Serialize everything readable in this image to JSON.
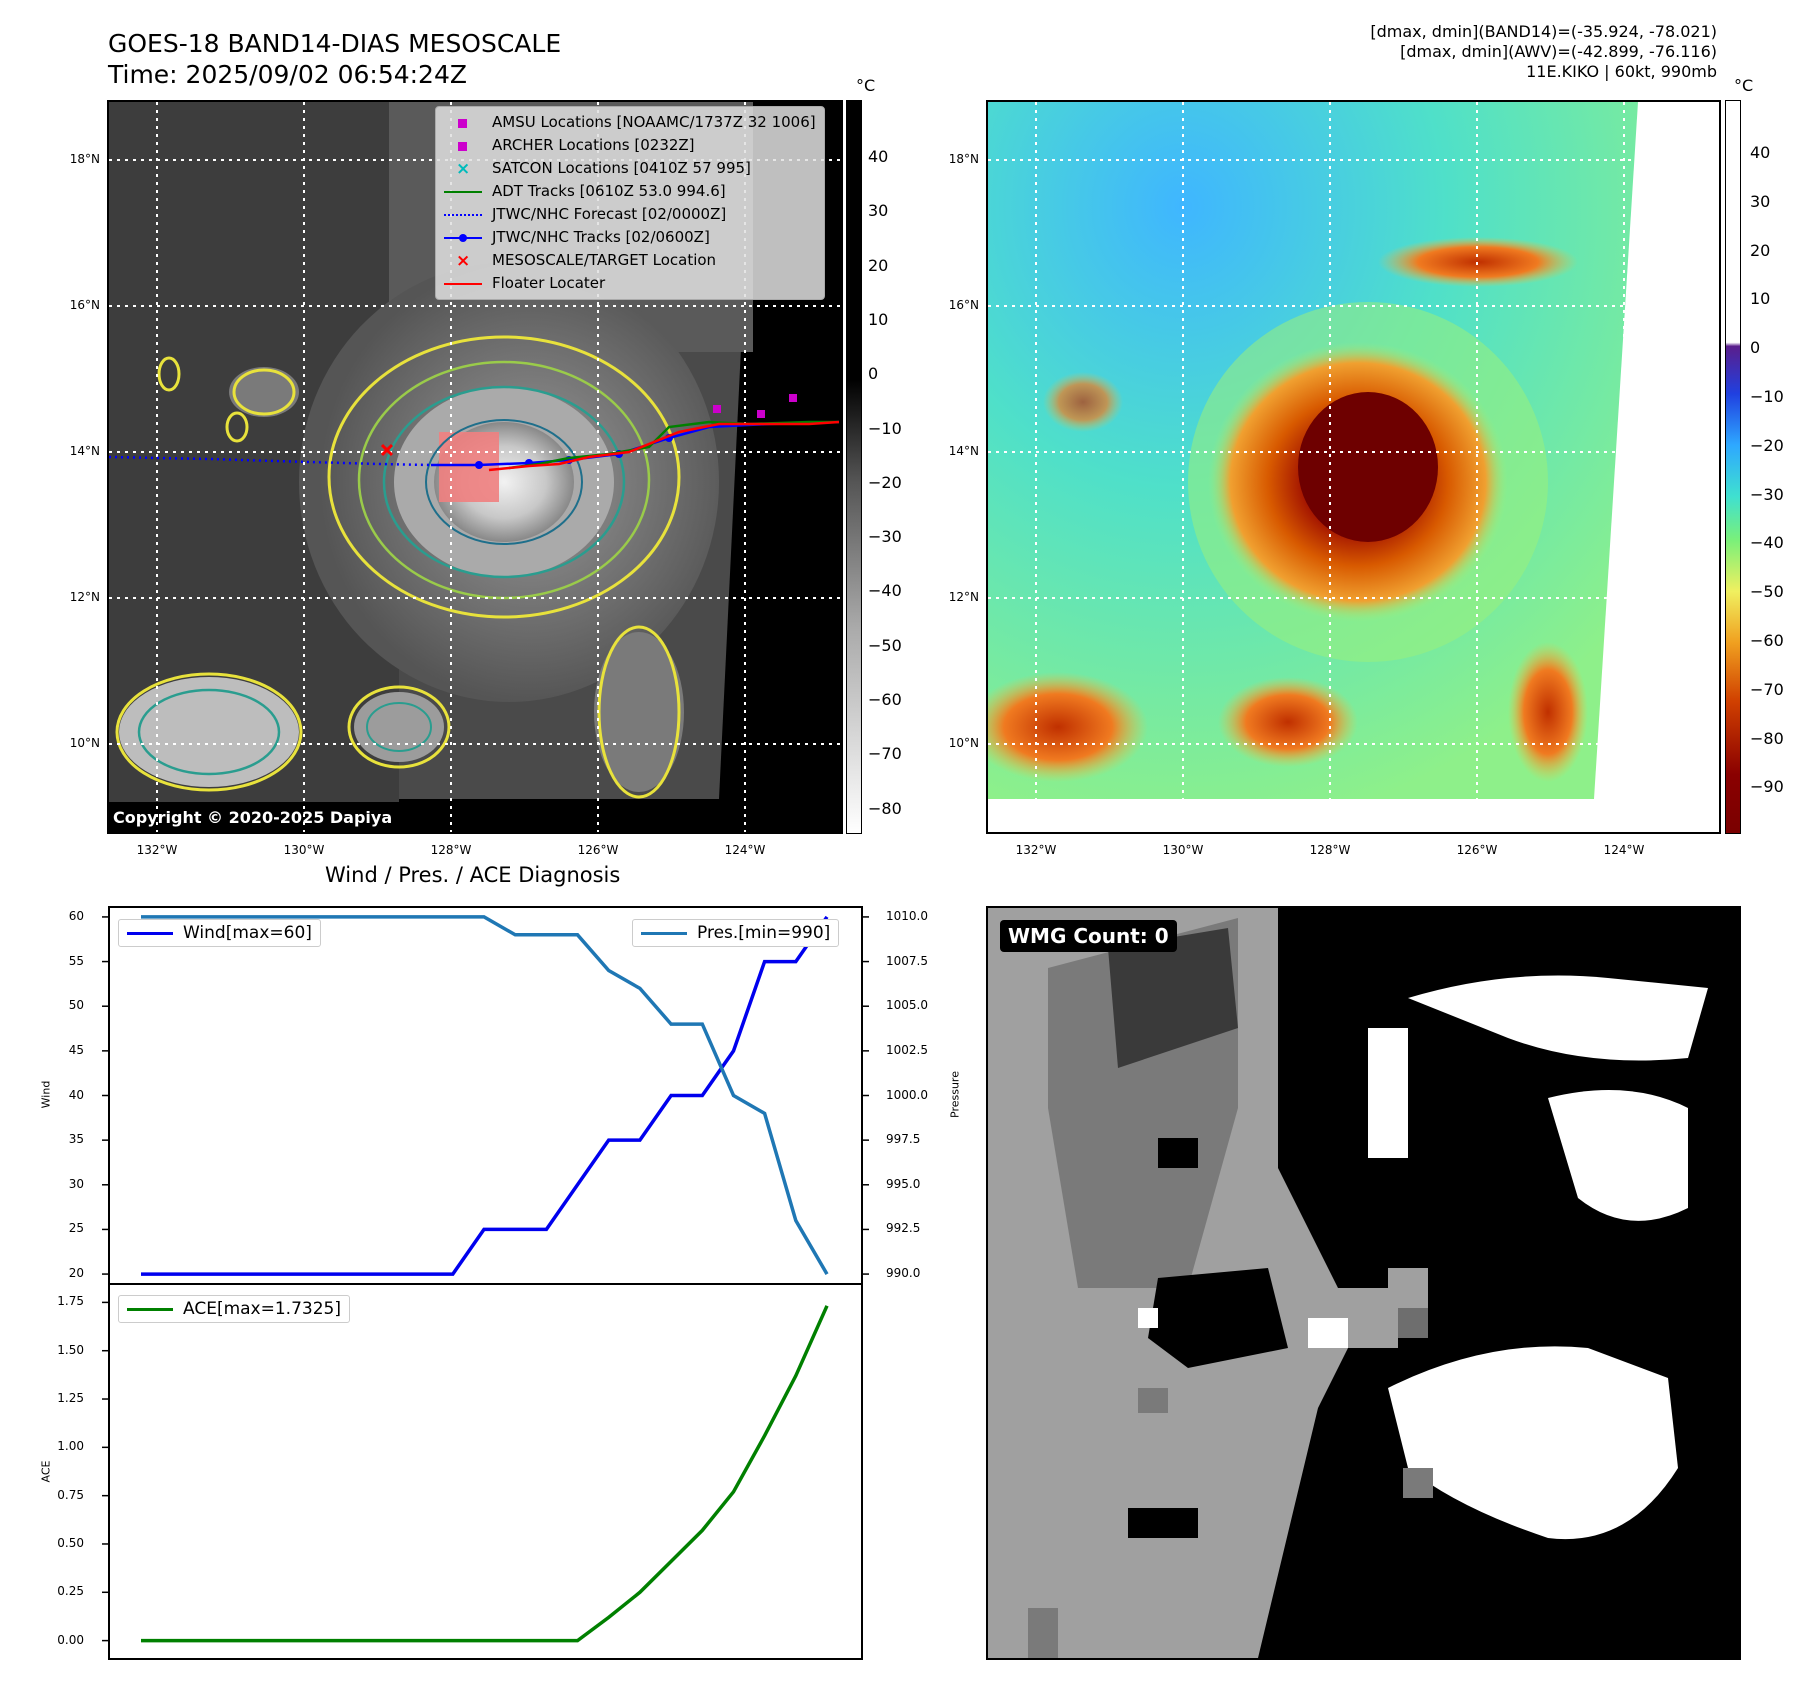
{
  "header": {
    "title_line1": "GOES-18 BAND14-DIAS MESOSCALE",
    "title_line2": "Time: 2025/09/02 06:54:24Z",
    "info_line1": "[dmax, dmin](BAND14)=(-35.924, -78.021)",
    "info_line2": "[dmax, dmin](AWV)=(-42.899, -76.116)",
    "info_line3": "11E.KIKO | 60kt, 990mb"
  },
  "units": {
    "celsius": "°C"
  },
  "map_axes": {
    "lon_ticks": [
      "132°W",
      "130°W",
      "128°W",
      "126°W",
      "124°W"
    ],
    "lat_ticks": [
      "18°N",
      "16°N",
      "14°N",
      "12°N",
      "10°N"
    ]
  },
  "left_colorbar": {
    "ticks": [
      "40",
      "30",
      "20",
      "10",
      "0",
      "−10",
      "−20",
      "−30",
      "−40",
      "−50",
      "−60",
      "−70",
      "−80"
    ]
  },
  "right_colorbar": {
    "ticks": [
      "40",
      "30",
      "20",
      "10",
      "0",
      "−10",
      "−20",
      "−30",
      "−40",
      "−50",
      "−60",
      "−70",
      "−80",
      "−90"
    ]
  },
  "legend": {
    "items": [
      {
        "label": "AMSU Locations [NOAAMC/1737Z 32 1006]",
        "symbol": "square",
        "color": "#cc00cc"
      },
      {
        "label": "ARCHER Locations [0232Z]",
        "symbol": "square",
        "color": "#cc00cc"
      },
      {
        "label": "SATCON Locations [0410Z 57 995]",
        "symbol": "x",
        "color": "#00bbbb"
      },
      {
        "label": "ADT Tracks [0610Z 53.0 994.6]",
        "symbol": "line",
        "color": "#008000"
      },
      {
        "label": "JTWC/NHC Forecast [02/0000Z]",
        "symbol": "dotted",
        "color": "#0000ff"
      },
      {
        "label": "JTWC/NHC Tracks [02/0600Z]",
        "symbol": "line-dot",
        "color": "#0000ff"
      },
      {
        "label": "MESOSCALE/TARGET Location",
        "symbol": "x",
        "color": "#ff0000"
      },
      {
        "label": "Floater Locater",
        "symbol": "line",
        "color": "#ff0000"
      }
    ]
  },
  "copyright": "Copyright © 2020-2025 Dapiya",
  "diagnosis": {
    "title": "Wind / Pres. / ACE Diagnosis",
    "wind_ylabel": "Wind",
    "pressure_ylabel": "Pressure",
    "ace_ylabel": "ACE",
    "wind_legend": "Wind[max=60]",
    "pressure_legend": "Pres.[min=990]",
    "ace_legend": "ACE[max=1.7325]",
    "wind_ticks": [
      "60",
      "55",
      "50",
      "45",
      "40",
      "35",
      "30",
      "25",
      "20"
    ],
    "pressure_ticks": [
      "1010.0",
      "1007.5",
      "1005.0",
      "1002.5",
      "1000.0",
      "997.5",
      "995.0",
      "992.5",
      "990.0"
    ],
    "ace_ticks": [
      "1.75",
      "1.50",
      "1.25",
      "1.00",
      "0.75",
      "0.50",
      "0.25",
      "0.00"
    ]
  },
  "wmg": {
    "label": "WMG Count: 0"
  },
  "colors": {
    "wind": "#0000ee",
    "pressure": "#1f77b4",
    "ace": "#008000"
  },
  "chart_data": {
    "type": "line",
    "x": [
      0,
      1,
      2,
      3,
      4,
      5,
      6,
      7,
      8,
      9,
      10,
      11,
      12,
      13,
      14,
      15,
      16,
      17,
      18,
      19,
      20,
      21,
      22
    ],
    "series": [
      {
        "name": "Wind[max=60]",
        "axis": "left",
        "ylim": [
          19,
          61
        ],
        "values": [
          20,
          20,
          20,
          20,
          20,
          20,
          20,
          20,
          20,
          20,
          20,
          25,
          25,
          25,
          30,
          35,
          35,
          40,
          40,
          45,
          55,
          55,
          60
        ]
      },
      {
        "name": "Pres.[min=990]",
        "axis": "right",
        "ylim": [
          989.5,
          1010.5
        ],
        "values": [
          1010,
          1010,
          1010,
          1010,
          1010,
          1010,
          1010,
          1010,
          1010,
          1010,
          1010,
          1010,
          1009,
          1009,
          1009,
          1007,
          1006,
          1004,
          1004,
          1000,
          999,
          993,
          990
        ]
      },
      {
        "name": "ACE[max=1.7325]",
        "axis": "ace",
        "ylim": [
          -0.09,
          1.84
        ],
        "values": [
          0,
          0,
          0,
          0,
          0,
          0,
          0,
          0,
          0,
          0,
          0,
          0,
          0,
          0,
          0,
          0.12,
          0.25,
          0.41,
          0.57,
          0.77,
          1.06,
          1.37,
          1.7325
        ]
      }
    ]
  }
}
